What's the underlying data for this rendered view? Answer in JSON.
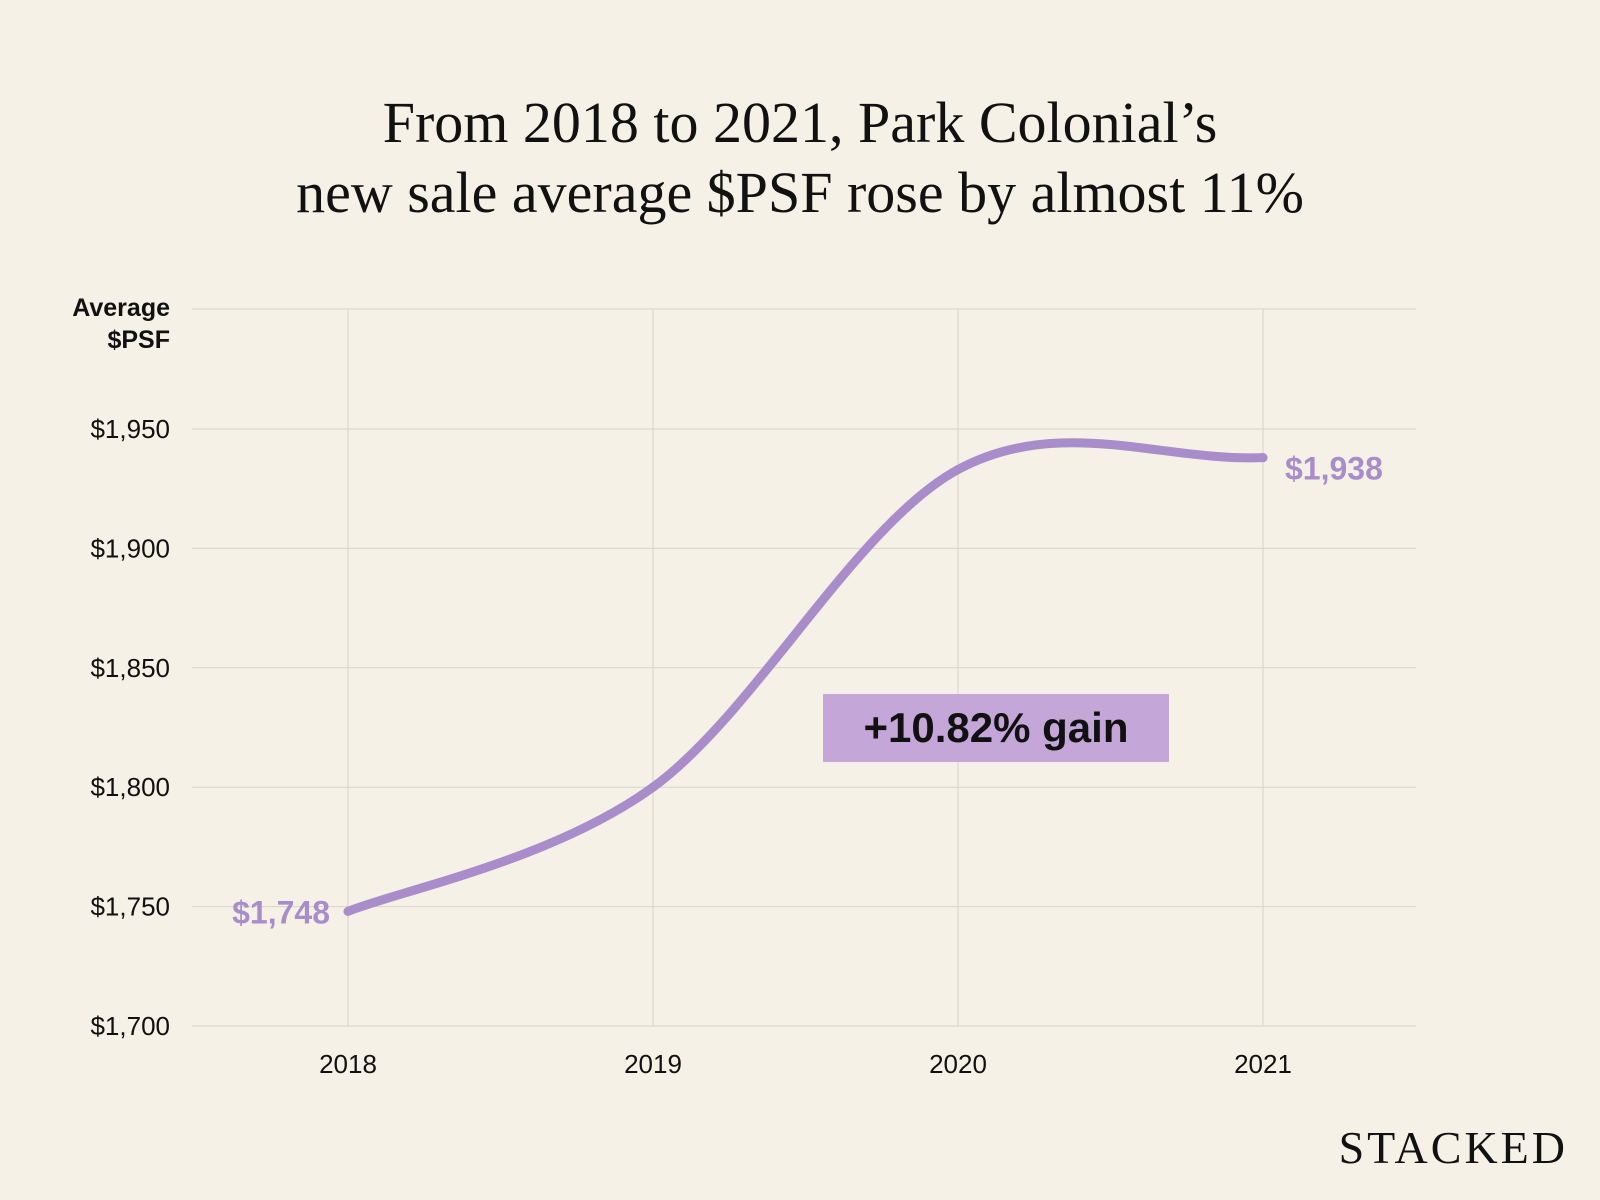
{
  "title": {
    "line1": "From 2018 to 2021, Park Colonial’s",
    "line2": "new sale average $PSF rose by almost 11%"
  },
  "brand": "STACKED",
  "colors": {
    "background": "#f5f1e6",
    "line": "#a98dca",
    "annotation_bg": "#c4a7d8",
    "grid": "#d9d4c8",
    "text": "#111111"
  },
  "chart_data": {
    "type": "line",
    "x": [
      "2018",
      "2019",
      "2020",
      "2021"
    ],
    "series": [
      {
        "values": [
          1748,
          1800,
          1933,
          1938
        ]
      }
    ],
    "ylabel": "Average $PSF",
    "ylim": [
      1700,
      1960
    ],
    "yticks": [
      1700,
      1750,
      1800,
      1850,
      1900,
      1950
    ],
    "ytick_labels": [
      "$1,700",
      "$1,750",
      "$1,800",
      "$1,850",
      "$1,900",
      "$1,950"
    ],
    "data_labels": {
      "start": "$1,748",
      "end": "$1,938"
    },
    "annotation": "+10.82% gain",
    "grid": true,
    "smooth": true
  }
}
